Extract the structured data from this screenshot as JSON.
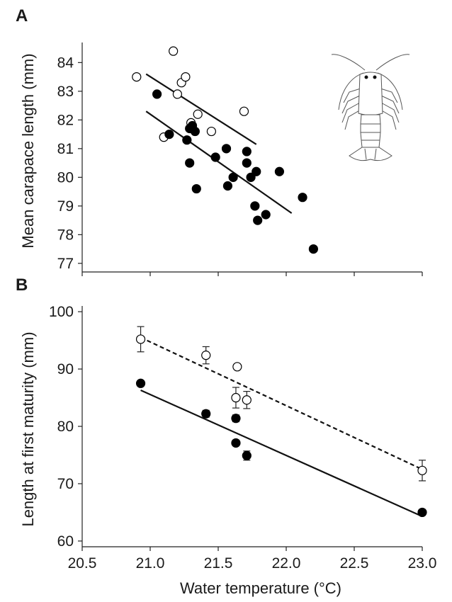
{
  "chart_data": [
    {
      "panel_label": "A",
      "type": "scatter",
      "ylabel": "Mean carapace length (mm)",
      "xlim": [
        20.5,
        23.0
      ],
      "ylim": [
        76.7,
        84.7
      ],
      "yticks": [
        "77",
        "78",
        "79",
        "80",
        "81",
        "82",
        "83",
        "84"
      ],
      "series": [
        {
          "marker": "open-circle",
          "points": [
            [
              20.9,
              83.5
            ],
            [
              21.17,
              84.4
            ],
            [
              21.23,
              83.3
            ],
            [
              21.26,
              83.5
            ],
            [
              21.2,
              82.9
            ],
            [
              21.1,
              81.4
            ],
            [
              21.3,
              81.9
            ],
            [
              21.35,
              82.2
            ],
            [
              21.45,
              81.6
            ],
            [
              21.69,
              82.3
            ]
          ],
          "fit": [
            [
              20.97,
              83.6
            ],
            [
              21.78,
              81.15
            ]
          ],
          "line_style": "solid"
        },
        {
          "marker": "filled-circle",
          "points": [
            [
              21.05,
              82.9
            ],
            [
              21.14,
              81.5
            ],
            [
              21.27,
              81.3
            ],
            [
              21.29,
              81.7
            ],
            [
              21.31,
              81.8
            ],
            [
              21.33,
              81.6
            ],
            [
              21.29,
              80.5
            ],
            [
              21.34,
              79.6
            ],
            [
              21.48,
              80.7
            ],
            [
              21.56,
              81.0
            ],
            [
              21.57,
              79.7
            ],
            [
              21.61,
              80.0
            ],
            [
              21.71,
              80.9
            ],
            [
              21.71,
              80.5
            ],
            [
              21.74,
              80.0
            ],
            [
              21.77,
              79.0
            ],
            [
              21.78,
              80.2
            ],
            [
              21.79,
              78.5
            ],
            [
              21.85,
              78.7
            ],
            [
              21.95,
              80.2
            ],
            [
              22.12,
              79.3
            ],
            [
              22.2,
              77.5
            ]
          ],
          "fit": [
            [
              20.97,
              82.3
            ],
            [
              22.04,
              78.75
            ]
          ],
          "line_style": "solid"
        }
      ]
    },
    {
      "panel_label": "B",
      "type": "scatter",
      "xlabel": "Water temperature (°C)",
      "ylabel": "Length at first maturity (mm)",
      "xlim": [
        20.5,
        23.0
      ],
      "ylim": [
        59,
        101
      ],
      "xticks": [
        "20.5",
        "21.0",
        "21.5",
        "22.0",
        "22.5",
        "23.0"
      ],
      "yticks": [
        "60",
        "70",
        "80",
        "90",
        "100"
      ],
      "series": [
        {
          "marker": "open-circle",
          "points": [
            [
              20.93,
              95.2
            ],
            [
              21.41,
              92.4
            ],
            [
              21.64,
              90.4
            ],
            [
              21.63,
              85.0
            ],
            [
              21.71,
              84.6
            ],
            [
              23.0,
              72.3
            ]
          ],
          "errors": [
            2.2,
            1.5,
            0,
            1.8,
            1.5,
            1.8
          ],
          "fit": [
            [
              20.93,
              95.5
            ],
            [
              23.0,
              72.5
            ]
          ],
          "line_style": "dashed"
        },
        {
          "marker": "filled-circle",
          "points": [
            [
              20.93,
              87.5
            ],
            [
              21.41,
              82.2
            ],
            [
              21.63,
              81.4
            ],
            [
              21.63,
              77.1
            ],
            [
              21.71,
              74.9
            ],
            [
              23.0,
              65.0
            ]
          ],
          "errors": [
            0.5,
            0.6,
            0.6,
            0.5,
            0.8,
            0.5
          ],
          "fit": [
            [
              20.93,
              86.3
            ],
            [
              23.0,
              64.3
            ]
          ],
          "line_style": "solid"
        }
      ]
    }
  ]
}
